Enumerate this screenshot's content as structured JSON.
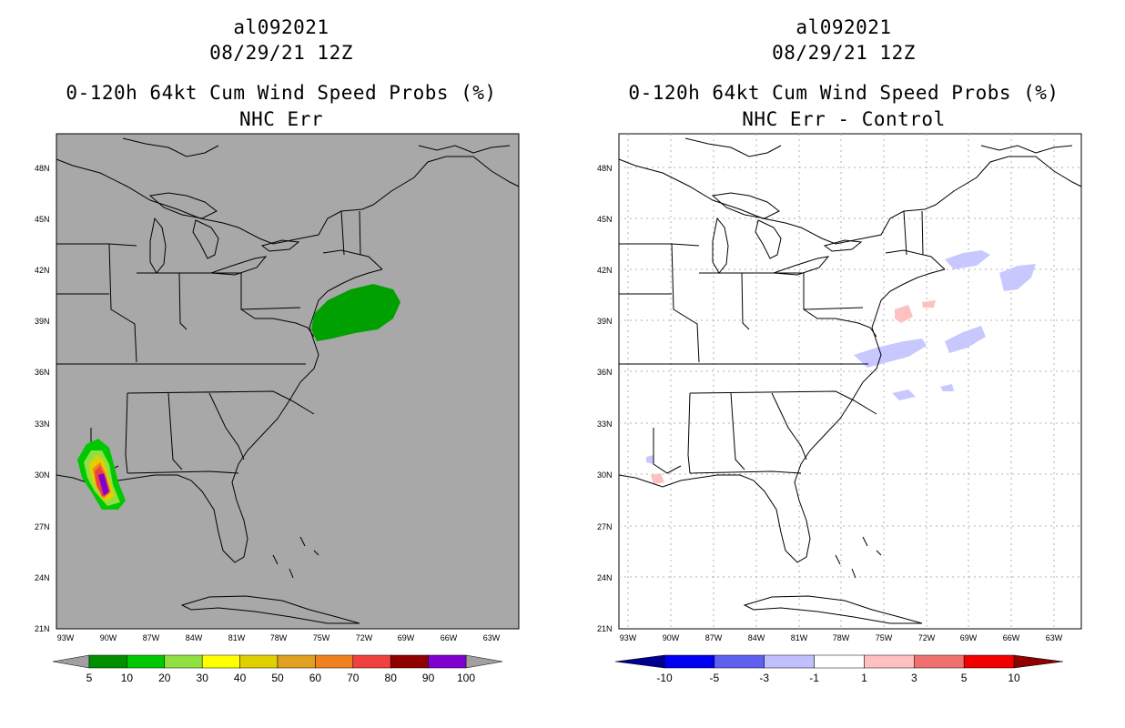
{
  "panels": [
    {
      "storm_id": "al092021",
      "datetime": "08/29/21 12Z",
      "product": "0-120h 64kt Cum Wind Speed Probs (%)",
      "subtitle": "NHC Err",
      "background_color": "#a8a8a8",
      "colorbar": {
        "labels": [
          "5",
          "10",
          "20",
          "30",
          "40",
          "50",
          "60",
          "70",
          "80",
          "90",
          "100"
        ],
        "colors": [
          "#008f00",
          "#00c800",
          "#8fe040",
          "#ffff00",
          "#e0d000",
          "#e0a020",
          "#f08020",
          "#f04040",
          "#900000",
          "#8000d0"
        ],
        "end_color": "#a0a0a0"
      }
    },
    {
      "storm_id": "al092021",
      "datetime": "08/29/21 12Z",
      "product": "0-120h 64kt Cum Wind Speed Probs (%)",
      "subtitle": "NHC Err - Control",
      "background_color": "#ffffff",
      "colorbar": {
        "labels": [
          "-10",
          "-5",
          "-3",
          "-1",
          "1",
          "3",
          "5",
          "10"
        ],
        "colors": [
          "#0000f0",
          "#6060f0",
          "#c0c0ff",
          "#ffffff",
          "#ffc0c0",
          "#f07070",
          "#f00000"
        ],
        "low_color": "#00008f",
        "high_color": "#8f0000"
      }
    }
  ],
  "axes": {
    "lat_labels": [
      "48N",
      "45N",
      "42N",
      "39N",
      "36N",
      "33N",
      "30N",
      "27N",
      "24N",
      "21N"
    ],
    "lon_labels": [
      "93W",
      "90W",
      "87W",
      "84W",
      "81W",
      "78W",
      "75W",
      "72W",
      "69W",
      "66W",
      "63W"
    ]
  }
}
